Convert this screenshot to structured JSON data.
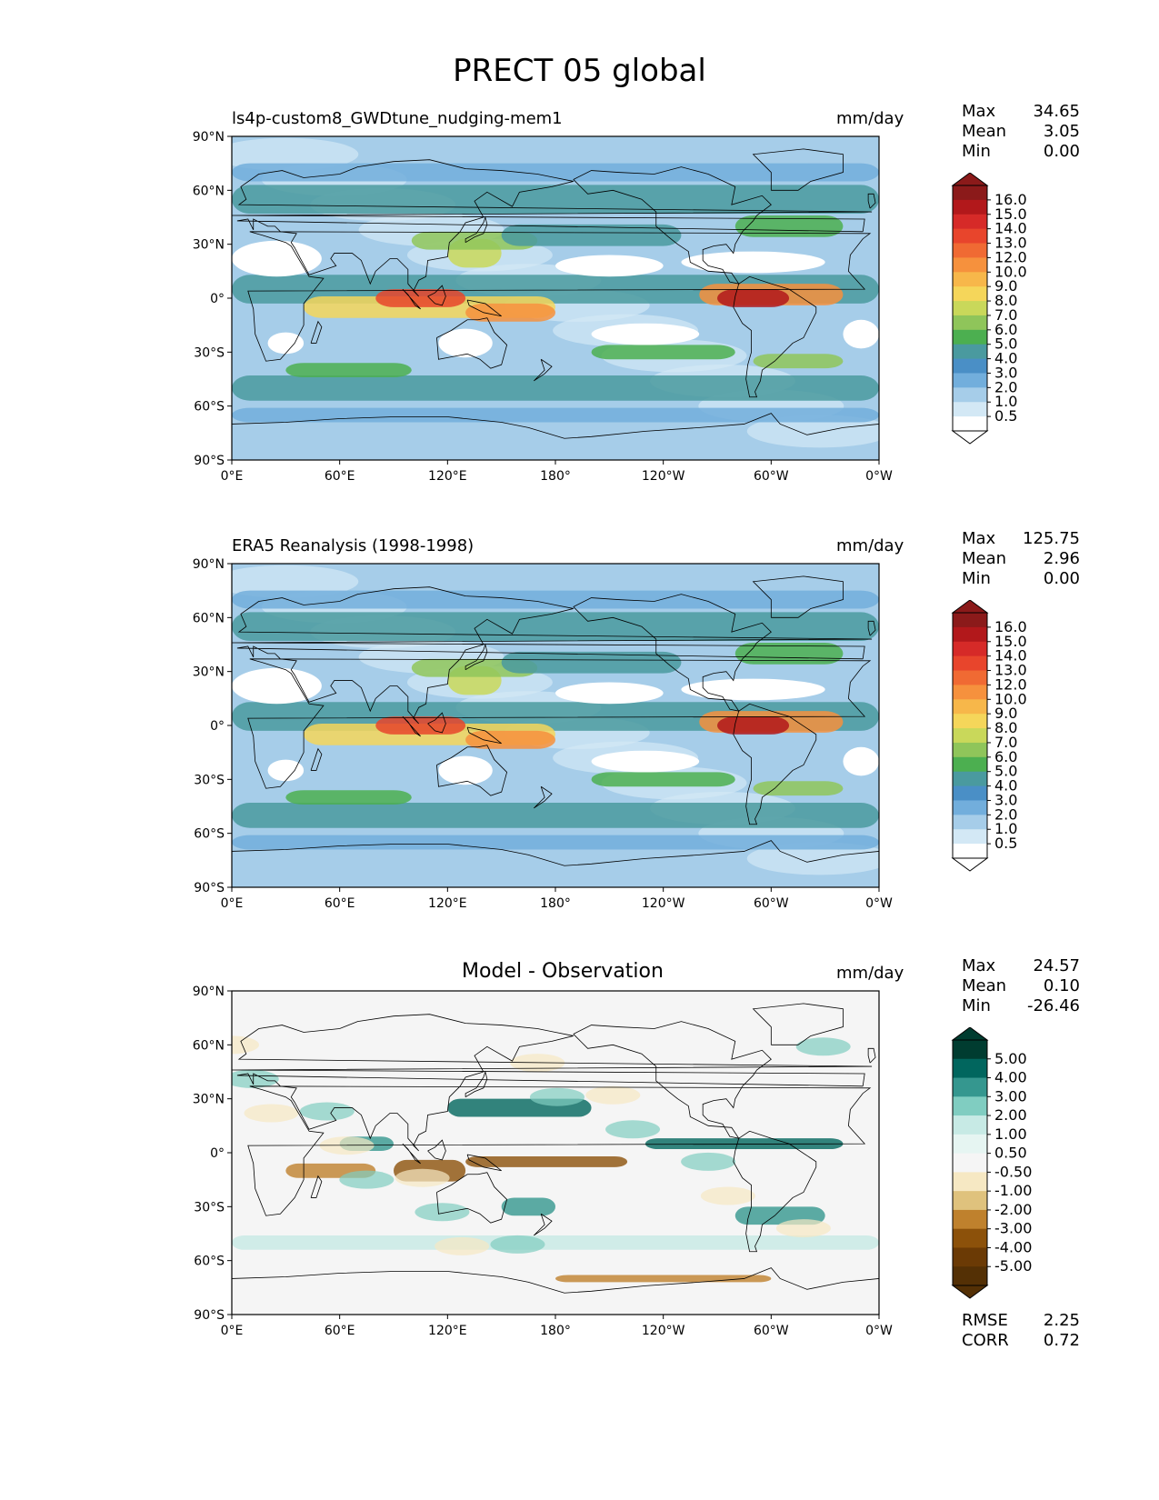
{
  "title": "PRECT 05 global",
  "lat_ticks": [
    "90°N",
    "60°N",
    "30°N",
    "0°",
    "30°S",
    "60°S",
    "90°S"
  ],
  "lon_ticks": [
    "0°E",
    "60°E",
    "120°E",
    "180°",
    "120°W",
    "60°W",
    "0°W"
  ],
  "precip_levels": [
    "16.0",
    "15.0",
    "14.0",
    "13.0",
    "12.0",
    "10.0",
    "9.0",
    "8.0",
    "7.0",
    "6.0",
    "5.0",
    "4.0",
    "3.0",
    "2.0",
    "1.0",
    "0.5"
  ],
  "precip_colors": [
    "#8b1a1a",
    "#b2181b",
    "#d62a28",
    "#e8452c",
    "#f06a33",
    "#f6913d",
    "#f7b74a",
    "#f5d65a",
    "#c9d85a",
    "#8fc55a",
    "#4caf50",
    "#4a9a9f",
    "#4a8fc6",
    "#72aedc",
    "#a6cde9",
    "#d3e8f5",
    "#ffffff"
  ],
  "diff_levels": [
    "5.00",
    "4.00",
    "3.00",
    "2.00",
    "1.00",
    "0.50",
    "-0.50",
    "-1.00",
    "-2.00",
    "-3.00",
    "-4.00",
    "-5.00"
  ],
  "diff_colors": [
    "#003c30",
    "#01665e",
    "#35978f",
    "#80cdc1",
    "#c7eae5",
    "#e6f5f2",
    "#f5f5f5",
    "#f6e8c3",
    "#dfc27d",
    "#bf812d",
    "#8c510a",
    "#6b3a05",
    "#543005"
  ],
  "panels": [
    {
      "left_title": "ls4p-custom8_GWDtune_nudging-mem1",
      "center_title": "",
      "units": "mm/day",
      "stats": {
        "max_label": "Max",
        "max": "34.65",
        "mean_label": "Mean",
        "mean": "3.05",
        "min_label": "Min",
        "min": "0.00"
      },
      "kind": "precip"
    },
    {
      "left_title": "ERA5 Reanalysis (1998-1998)",
      "center_title": "",
      "units": "mm/day",
      "stats": {
        "max_label": "Max",
        "max": "125.75",
        "mean_label": "Mean",
        "mean": "2.96",
        "min_label": "Min",
        "min": "0.00"
      },
      "kind": "precip"
    },
    {
      "left_title": "",
      "center_title": "Model - Observation",
      "units": "mm/day",
      "stats": {
        "max_label": "Max",
        "max": "24.57",
        "mean_label": "Mean",
        "mean": "0.10",
        "min_label": "Min",
        "min": "-26.46"
      },
      "kind": "diff",
      "footer": {
        "rmse_label": "RMSE",
        "rmse": "2.25",
        "corr_label": "CORR",
        "corr": "0.72"
      }
    }
  ]
}
